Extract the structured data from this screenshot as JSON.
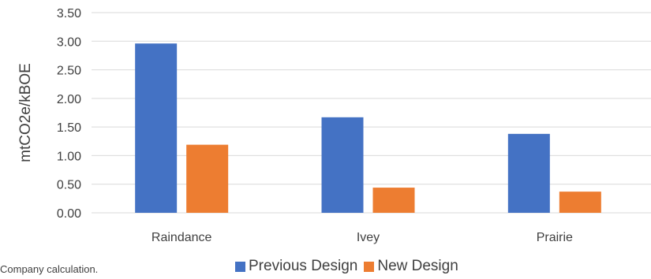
{
  "chart_data": {
    "type": "bar",
    "categories": [
      "Raindance",
      "Ivey",
      "Prairie"
    ],
    "series": [
      {
        "name": "Previous Design",
        "values": [
          2.96,
          1.67,
          1.38
        ],
        "color": "#4472c4"
      },
      {
        "name": "New Design",
        "values": [
          1.19,
          0.44,
          0.37
        ],
        "color": "#ed7d31"
      }
    ],
    "ylabel": "mtCO2e/kBOE",
    "yticks": [
      "0.00",
      "0.50",
      "1.00",
      "1.50",
      "2.00",
      "2.50",
      "3.00",
      "3.50"
    ],
    "ylim": [
      0,
      3.5
    ],
    "grid": true,
    "legend_placement": "bottom"
  },
  "footnote": "Company calculation."
}
